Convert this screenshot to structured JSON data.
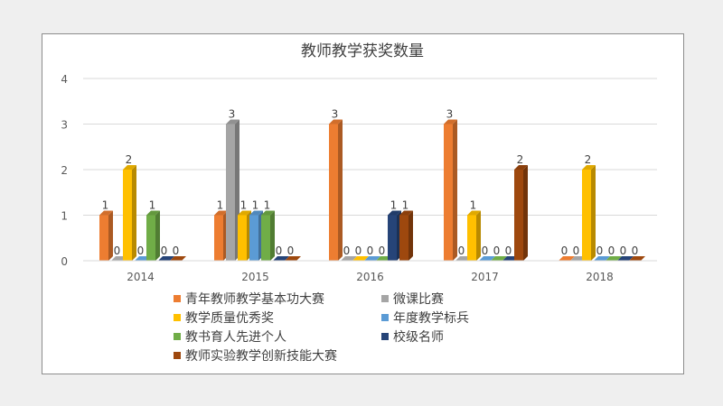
{
  "chart_data": {
    "type": "bar",
    "title": "教师教学获奖数量",
    "categories": [
      "2014",
      "2015",
      "2016",
      "2017",
      "2018"
    ],
    "ylim": [
      0,
      4
    ],
    "yticks": [
      0,
      1,
      2,
      3,
      4
    ],
    "grid": true,
    "legend_position": "bottom",
    "series": [
      {
        "name": "青年教师教学基本功大赛",
        "color": "#ed7d31",
        "values": [
          1,
          1,
          3,
          3,
          0
        ]
      },
      {
        "name": "微课比赛",
        "color": "#a5a5a5",
        "values": [
          0,
          3,
          0,
          0,
          0
        ]
      },
      {
        "name": "教学质量优秀奖",
        "color": "#ffc000",
        "values": [
          2,
          1,
          0,
          1,
          2
        ]
      },
      {
        "name": "年度教学标兵",
        "color": "#5b9bd5",
        "values": [
          0,
          1,
          0,
          0,
          0
        ]
      },
      {
        "name": "教书育人先进个人",
        "color": "#70ad47",
        "values": [
          1,
          1,
          0,
          0,
          0
        ]
      },
      {
        "name": "校级名师",
        "color": "#264478",
        "values": [
          0,
          0,
          1,
          0,
          0
        ]
      },
      {
        "name": "教师实验教学创新技能大赛",
        "color": "#9e480e",
        "values": [
          0,
          0,
          1,
          2,
          0
        ]
      }
    ]
  }
}
